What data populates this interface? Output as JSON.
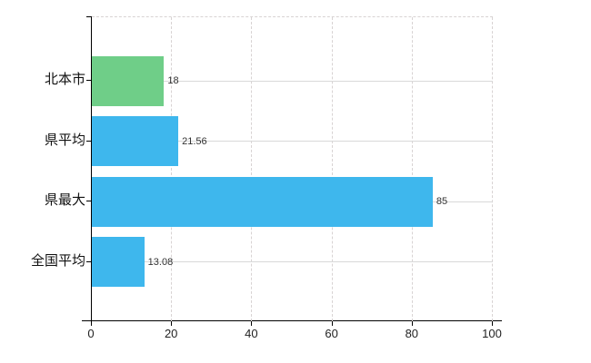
{
  "chart_data": {
    "type": "bar",
    "orientation": "horizontal",
    "title": "",
    "xlabel": "",
    "ylabel": "",
    "categories": [
      "北本市",
      "県平均",
      "県最大",
      "全国平均"
    ],
    "values": [
      18,
      21.56,
      85,
      13.08
    ],
    "value_labels": [
      "18",
      "21.56",
      "85",
      "13.08"
    ],
    "series_colors": [
      "#6fce88",
      "#3eb7ed",
      "#3eb7ed",
      "#3eb7ed"
    ],
    "xlim": [
      0,
      100
    ],
    "x_ticks": [
      0,
      20,
      40,
      60,
      80,
      100
    ],
    "x_tick_labels": [
      "0",
      "20",
      "40",
      "60",
      "80",
      "100"
    ],
    "grid": "horizontal-solid-and-vertical-dashed",
    "legend_position": "none"
  },
  "colors": {
    "background": "#ffffff",
    "bar_highlight": "#6fce88",
    "bar_default": "#3eb7ed",
    "grid_solid": "#d9d9d9",
    "grid_dashed": "#d8d3d3",
    "axis": "#000000",
    "tick_label": "#222222",
    "value_label": "#333333",
    "cat_label": "#111111"
  }
}
